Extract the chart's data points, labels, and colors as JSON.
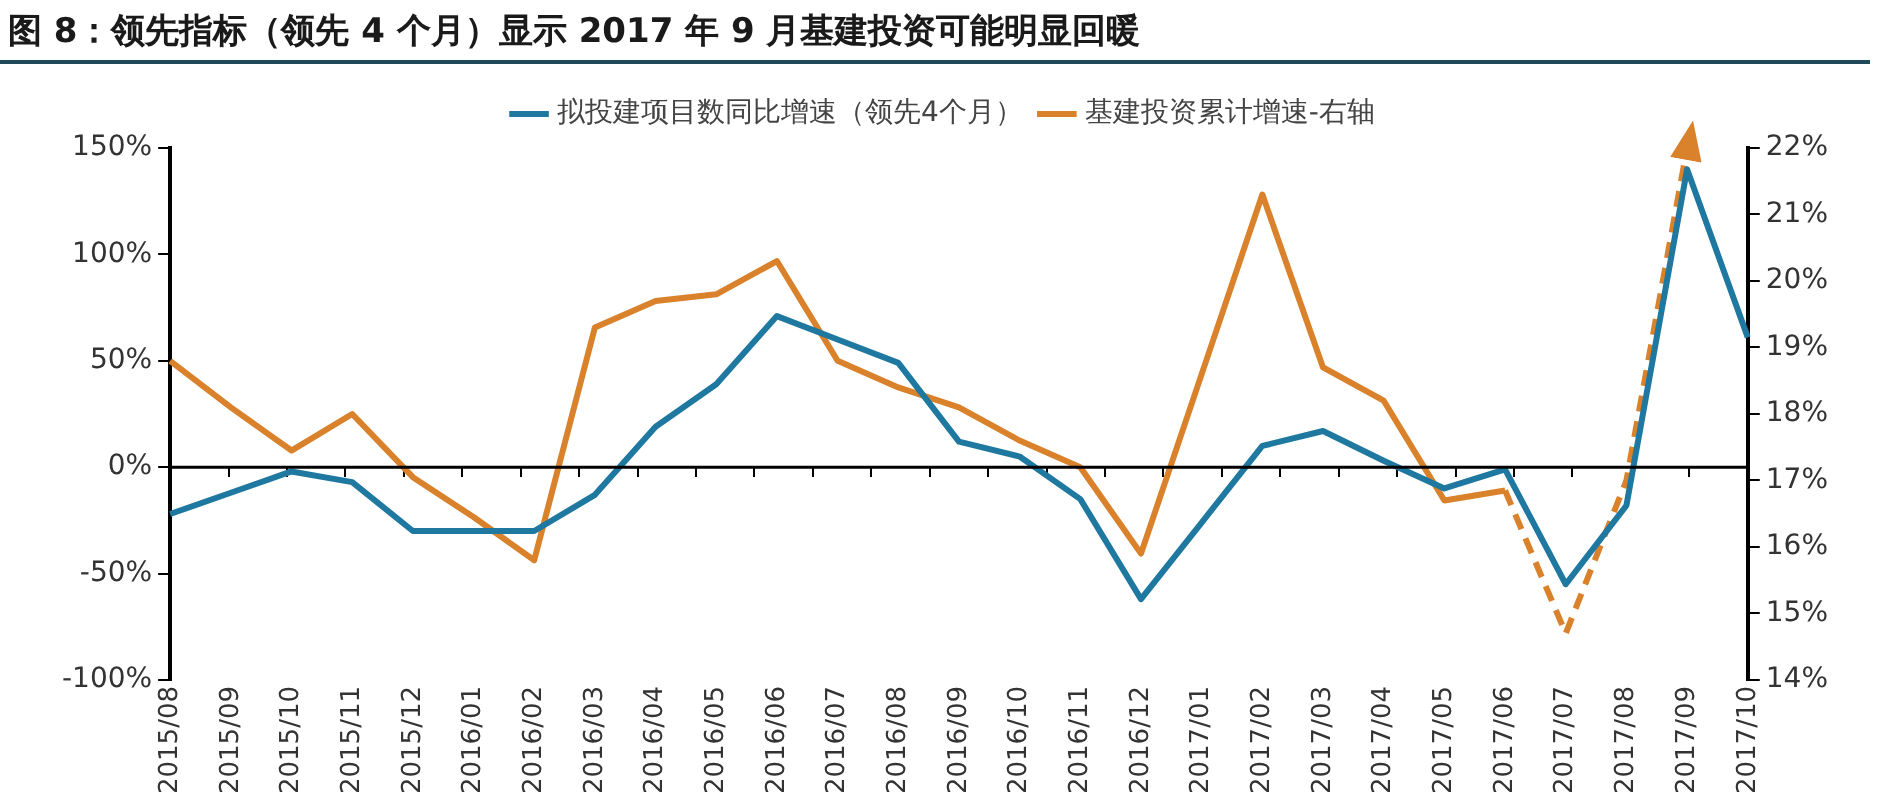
{
  "chart_data": {
    "type": "line",
    "title": "图 8：领先指标（领先 4 个月）显示 2017 年 9 月基建投资可能明显回暖",
    "categories": [
      "2015/08",
      "2015/09",
      "2015/10",
      "2015/11",
      "2015/12",
      "2016/01",
      "2016/02",
      "2016/03",
      "2016/04",
      "2016/05",
      "2016/06",
      "2016/07",
      "2016/08",
      "2016/09",
      "2016/10",
      "2016/11",
      "2016/12",
      "2017/01",
      "2017/02",
      "2017/03",
      "2017/04",
      "2017/05",
      "2017/06",
      "2017/07",
      "2017/08",
      "2017/09",
      "2017/10"
    ],
    "series": [
      {
        "name": "拟投建项目数同比增速（领先4个月）",
        "color": "#1f78a0",
        "values": [
          -22,
          -12,
          -2,
          -7,
          -30,
          -30,
          -30,
          -13,
          19,
          39,
          71,
          60,
          49,
          12,
          5,
          -15,
          -62,
          -26,
          10,
          17,
          3,
          -10,
          -1,
          -55,
          -18,
          140,
          61
        ]
      },
      {
        "name": "基建投资累计增速-右轴",
        "color": "#d9822b",
        "axis": "y2",
        "values": [
          18.8,
          18.1,
          17.45,
          18.0,
          17.05,
          16.45,
          15.8,
          19.3,
          19.7,
          19.8,
          20.3,
          18.8,
          18.4,
          18.1,
          17.6,
          17.2,
          15.9,
          18.6,
          21.3,
          18.7,
          18.2,
          16.7,
          16.85,
          null,
          null,
          null,
          null
        ]
      },
      {
        "color": "#d9822b",
        "axis": "y2",
        "line_style": "dashed",
        "values": [
          null,
          null,
          null,
          null,
          null,
          null,
          null,
          null,
          null,
          null,
          null,
          null,
          null,
          null,
          null,
          null,
          null,
          null,
          null,
          null,
          null,
          null,
          16.85,
          14.7,
          17.0,
          22.0,
          null
        ]
      }
    ],
    "ref_lines": [
      {
        "axis": "y",
        "value": 0,
        "color": "#000000"
      }
    ],
    "ylim": [
      -100,
      150
    ],
    "yticks": [
      {
        "value": -100,
        "label": "-100%"
      },
      {
        "value": -50,
        "label": "-50%"
      },
      {
        "value": 0,
        "label": "0%"
      },
      {
        "value": 50,
        "label": "50%"
      },
      {
        "value": 100,
        "label": "100%"
      },
      {
        "value": 150,
        "label": "150%"
      }
    ],
    "y2lim": [
      14,
      22
    ],
    "y2ticks": [
      {
        "value": 14,
        "label": "14%"
      },
      {
        "value": 15,
        "label": "15%"
      },
      {
        "value": 16,
        "label": "16%"
      },
      {
        "value": 17,
        "label": "17%"
      },
      {
        "value": 18,
        "label": "18%"
      },
      {
        "value": 19,
        "label": "19%"
      },
      {
        "value": 20,
        "label": "20%"
      },
      {
        "value": 21,
        "label": "21%"
      },
      {
        "value": 22,
        "label": "22%"
      }
    ],
    "legend": "top",
    "grid": false,
    "marker": "none",
    "line_style": "solid"
  }
}
